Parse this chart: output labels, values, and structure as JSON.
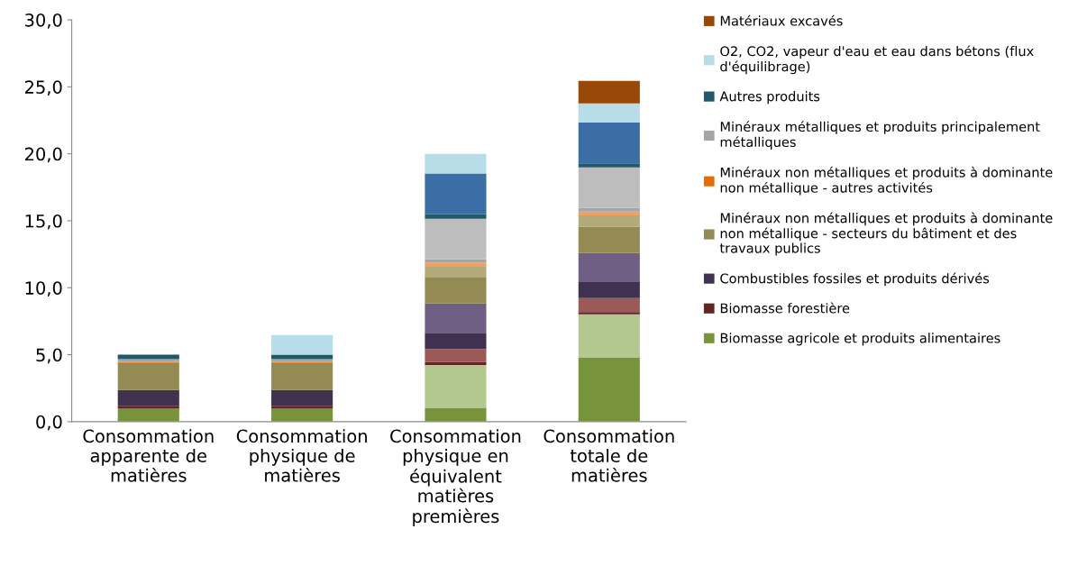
{
  "chart_data": {
    "type": "bar",
    "stacked": true,
    "categories": [
      "Consommation apparente de matières",
      "Consommation physique de matières",
      "Consommation physique en équivalent matières premières",
      "Consommation totale de matières"
    ],
    "series": [
      {
        "name": "Biomasse agricole et produits alimentaires",
        "color": "#77933c",
        "values": [
          0.96,
          0.96,
          1.0,
          4.77
        ]
      },
      {
        "color": "#b3c88f",
        "values": [
          0,
          0,
          3.23,
          3.25
        ]
      },
      {
        "name": "Biomasse forestière",
        "color": "#632523",
        "values": [
          0.22,
          0.22,
          0.22,
          0.16
        ]
      },
      {
        "color": "#9a5a58",
        "values": [
          0,
          0,
          0.97,
          1.05
        ]
      },
      {
        "name": "Combustibles fossiles et produits dérivés",
        "color": "#403151",
        "values": [
          1.18,
          1.18,
          1.21,
          1.19
        ]
      },
      {
        "color": "#6f5f85",
        "values": [
          0,
          0,
          2.19,
          2.17
        ]
      },
      {
        "name": "Minéraux non métalliques et produits à dominante non métallique - secteurs du bâtiment et des travaux publics",
        "color": "#948a54",
        "values": [
          2.02,
          2.02,
          1.98,
          1.97
        ]
      },
      {
        "color": "#b3aa7c",
        "values": [
          0,
          0,
          0.76,
          0.84
        ]
      },
      {
        "name": "Minéraux non métalliques et produits à dominante non métallique - autres activités",
        "color": "#e46c0a",
        "values": [
          0.07,
          0.07,
          0,
          0
        ]
      },
      {
        "color": "#f0a060",
        "values": [
          0,
          0,
          0.33,
          0.29
        ]
      },
      {
        "name": "Minéraux métalliques et produits principalement métalliques",
        "color": "#a6a6a6",
        "values": [
          0.21,
          0.21,
          0.25,
          0.27
        ]
      },
      {
        "color": "#bdbdbd",
        "values": [
          0,
          0,
          3.0,
          3.03
        ]
      },
      {
        "name": "Autres produits",
        "color": "#215968",
        "values": [
          0.34,
          0.34,
          0.34,
          0.29
        ]
      },
      {
        "color": "#3a6ea5",
        "values": [
          0,
          0,
          3.05,
          3.07
        ]
      },
      {
        "name": "O2, CO2, vapeur d'eau et eau dans bétons (flux d'équilibrage)",
        "color": "#b7dee8",
        "values": [
          0,
          1.46,
          1.46,
          1.41
        ]
      },
      {
        "name": "Matériaux excavés",
        "color": "#984807",
        "values": [
          0,
          0,
          0,
          1.68
        ]
      }
    ],
    "ylim": [
      0,
      30
    ],
    "yticks": [
      {
        "value": 0,
        "label": "0,0"
      },
      {
        "value": 5,
        "label": "5,0"
      },
      {
        "value": 10,
        "label": "10,0"
      },
      {
        "value": 15,
        "label": "15,0"
      },
      {
        "value": 20,
        "label": "20,0"
      },
      {
        "value": 25,
        "label": "25,0"
      },
      {
        "value": 30,
        "label": "30,0"
      }
    ],
    "grid": false,
    "legend": "right"
  }
}
